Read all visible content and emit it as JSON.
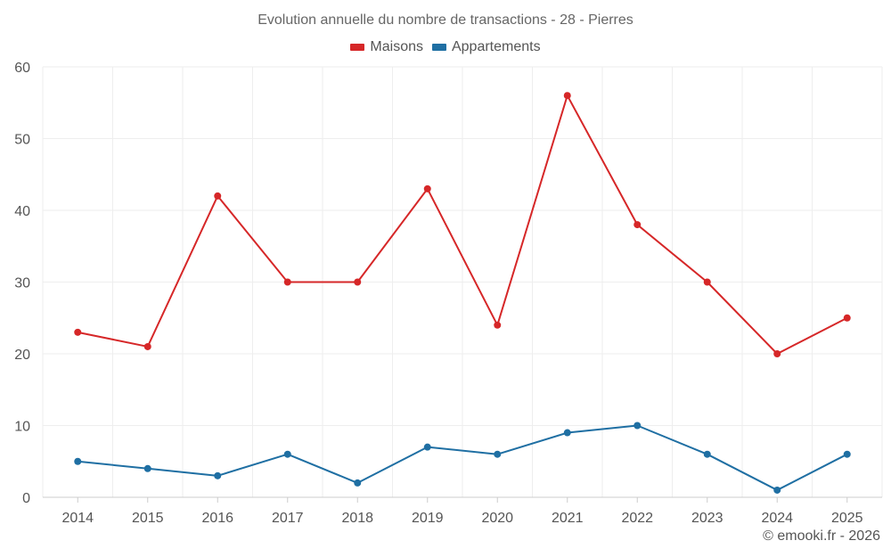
{
  "chart_data": {
    "type": "line",
    "title": "Evolution annuelle du nombre de transactions - 28 - Pierres",
    "categories": [
      "2014",
      "2015",
      "2016",
      "2017",
      "2018",
      "2019",
      "2020",
      "2021",
      "2022",
      "2023",
      "2024",
      "2025"
    ],
    "series": [
      {
        "name": "Maisons",
        "color": "#d62728",
        "values": [
          23,
          21,
          42,
          30,
          30,
          43,
          24,
          56,
          38,
          30,
          20,
          25
        ]
      },
      {
        "name": "Appartements",
        "color": "#1f6fa3",
        "values": [
          5,
          4,
          3,
          6,
          2,
          7,
          6,
          9,
          10,
          6,
          1,
          6
        ]
      }
    ],
    "ylim": [
      0,
      60
    ],
    "yticks": [
      "0",
      "10",
      "20",
      "30",
      "40",
      "50",
      "60"
    ],
    "grid": true,
    "legend_position": "top-center",
    "xlabel": "",
    "ylabel": ""
  },
  "credit": "© emooki.fr - 2026"
}
